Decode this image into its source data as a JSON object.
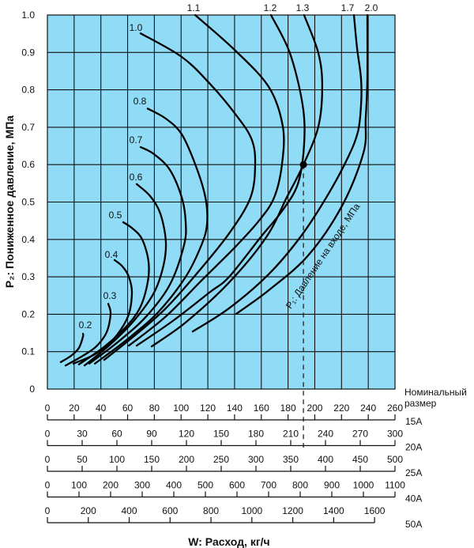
{
  "chart_data": {
    "type": "line",
    "xlabel": "W: Расход, кг/ч",
    "ylabel": "P₂: Пониженное давление, МПа",
    "series_title": "P₁: Давление на входе, МПа",
    "nominal_size_title": [
      "Номинальный",
      "размер"
    ],
    "grid": true,
    "colors": {
      "plot_background": "#90dcf6",
      "grid": "#111111",
      "curve": "#000000"
    },
    "y_axis": {
      "min": 0,
      "max": 1.0,
      "step": 0.1,
      "tick_labels": [
        "0",
        "0.1",
        "0.2",
        "0.3",
        "0.4",
        "0.5",
        "0.6",
        "0.7",
        "0.8",
        "0.9",
        "1.0"
      ]
    },
    "x_axes": [
      {
        "size": "15A",
        "full_scale": 260,
        "ticks": [
          0,
          20,
          40,
          60,
          80,
          100,
          120,
          140,
          160,
          180,
          200,
          220,
          240,
          260
        ],
        "tick_labels": [
          "0",
          "20",
          "40",
          "60",
          "80",
          "100",
          "120",
          "140",
          "160",
          "180",
          "200",
          "220",
          "240",
          "260"
        ]
      },
      {
        "size": "20A",
        "full_scale": 300,
        "ticks": [
          0,
          30,
          60,
          90,
          120,
          150,
          180,
          210,
          240,
          270,
          300
        ],
        "tick_labels": [
          "0",
          "30",
          "60",
          "90",
          "120",
          "150",
          "180",
          "210",
          "240",
          "270",
          "300"
        ]
      },
      {
        "size": "25A",
        "full_scale": 500,
        "ticks": [
          0,
          50,
          100,
          150,
          200,
          250,
          300,
          350,
          400,
          450,
          500
        ],
        "tick_labels": [
          "0",
          "50",
          "100",
          "150",
          "200",
          "250",
          "300",
          "350",
          "400",
          "450",
          "500"
        ]
      },
      {
        "size": "40A",
        "full_scale": 1100,
        "ticks": [
          0,
          100,
          200,
          300,
          400,
          500,
          600,
          700,
          800,
          900,
          1000,
          1100
        ],
        "tick_labels": [
          "0",
          "100",
          "200",
          "300",
          "400",
          "500",
          "600",
          "700",
          "800",
          "900",
          "1000",
          "1100"
        ]
      },
      {
        "size": "50A",
        "full_scale": 1700,
        "ticks": [
          0,
          200,
          400,
          600,
          800,
          1000,
          1200,
          1400,
          1600
        ],
        "tick_labels": [
          "0",
          "200",
          "400",
          "600",
          "800",
          "1000",
          "1200",
          "1400",
          "1600"
        ]
      }
    ],
    "series_x_axis": "15A",
    "series": [
      {
        "name": "0.2",
        "points": [
          [
            10,
            0.072
          ],
          [
            17.7,
            0.089
          ],
          [
            23.6,
            0.11
          ],
          [
            26.6,
            0.14
          ],
          [
            26.6,
            0.148
          ]
        ]
      },
      {
        "name": "0.3",
        "points": [
          [
            13.6,
            0.063
          ],
          [
            26.6,
            0.089
          ],
          [
            36.6,
            0.114
          ],
          [
            44.3,
            0.152
          ],
          [
            47.3,
            0.201
          ],
          [
            45.5,
            0.228
          ]
        ]
      },
      {
        "name": "0.4",
        "points": [
          [
            19.5,
            0.068
          ],
          [
            35.5,
            0.093
          ],
          [
            49.0,
            0.131
          ],
          [
            60.3,
            0.194
          ],
          [
            63.2,
            0.258
          ],
          [
            60.9,
            0.3
          ],
          [
            56.1,
            0.328
          ],
          [
            50.2,
            0.345
          ]
        ]
      },
      {
        "name": "0.5",
        "points": [
          [
            23.6,
            0.066
          ],
          [
            41.4,
            0.11
          ],
          [
            57.9,
            0.163
          ],
          [
            69.1,
            0.216
          ],
          [
            75.0,
            0.285
          ],
          [
            75.6,
            0.342
          ],
          [
            70.9,
            0.4
          ],
          [
            63.8,
            0.429
          ],
          [
            56.7,
            0.446
          ]
        ]
      },
      {
        "name": "0.6",
        "points": [
          [
            27.8,
            0.063
          ],
          [
            47.3,
            0.12
          ],
          [
            65.0,
            0.184
          ],
          [
            79.8,
            0.258
          ],
          [
            86.9,
            0.332
          ],
          [
            88.6,
            0.395
          ],
          [
            84.5,
            0.469
          ],
          [
            76.8,
            0.516
          ],
          [
            66.8,
            0.548
          ]
        ]
      },
      {
        "name": "0.7",
        "points": [
          [
            31.3,
            0.068
          ],
          [
            53.2,
            0.127
          ],
          [
            73.9,
            0.194
          ],
          [
            91.6,
            0.279
          ],
          [
            102.2,
            0.385
          ],
          [
            103.4,
            0.448
          ],
          [
            100.5,
            0.512
          ],
          [
            91.6,
            0.586
          ],
          [
            79.8,
            0.628
          ],
          [
            69.7,
            0.647
          ]
        ]
      },
      {
        "name": "0.8",
        "points": [
          [
            35.5,
            0.068
          ],
          [
            59.1,
            0.131
          ],
          [
            82.7,
            0.205
          ],
          [
            103.4,
            0.3
          ],
          [
            115.2,
            0.385
          ],
          [
            119.4,
            0.442
          ],
          [
            118.2,
            0.512
          ],
          [
            111.1,
            0.596
          ],
          [
            100.5,
            0.681
          ],
          [
            88.6,
            0.723
          ],
          [
            75.0,
            0.75
          ]
        ]
      },
      {
        "name": "1.0",
        "points": [
          [
            42.5,
            0.078
          ],
          [
            65.0,
            0.142
          ],
          [
            88.6,
            0.216
          ],
          [
            112.3,
            0.311
          ],
          [
            135.9,
            0.416
          ],
          [
            151.9,
            0.512
          ],
          [
            155.4,
            0.602
          ],
          [
            152.5,
            0.67
          ],
          [
            140.0,
            0.738
          ],
          [
            121.1,
            0.818
          ],
          [
            100.5,
            0.888
          ],
          [
            69.7,
            0.951
          ]
        ]
      },
      {
        "name": "1.1",
        "points": [
          [
            60.9,
            0.116
          ],
          [
            88.6,
            0.194
          ],
          [
            115.2,
            0.29
          ],
          [
            138.9,
            0.374
          ],
          [
            157.8,
            0.448
          ],
          [
            169.6,
            0.512
          ],
          [
            175.5,
            0.602
          ],
          [
            176.1,
            0.702
          ],
          [
            165.5,
            0.808
          ],
          [
            140.0,
            0.907
          ],
          [
            110.5,
            1.0
          ]
        ]
      },
      {
        "name": "1.2",
        "points": [
          [
            66.8,
            0.116
          ],
          [
            94.5,
            0.184
          ],
          [
            121.1,
            0.258
          ],
          [
            135.9,
            0.3
          ],
          [
            159.5,
            0.406
          ],
          [
            175.5,
            0.476
          ],
          [
            187.3,
            0.548
          ],
          [
            192.0,
            0.653
          ],
          [
            190.9,
            0.759
          ],
          [
            181.4,
            0.898
          ],
          [
            167.2,
            1.0
          ]
        ]
      },
      {
        "name": "1.3",
        "points": [
          [
            78.0,
            0.114
          ],
          [
            103.4,
            0.178
          ],
          [
            135.9,
            0.285
          ],
          [
            163.7,
            0.406
          ],
          [
            179.0,
            0.512
          ],
          [
            191.5,
            0.6
          ],
          [
            202.7,
            0.702
          ],
          [
            205.6,
            0.808
          ],
          [
            202.7,
            0.898
          ],
          [
            192.0,
            1.0
          ]
        ]
      },
      {
        "name": "1.7",
        "points": [
          [
            108.7,
            0.154
          ],
          [
            135.9,
            0.216
          ],
          [
            165.5,
            0.307
          ],
          [
            189.1,
            0.406
          ],
          [
            208.6,
            0.512
          ],
          [
            224.5,
            0.617
          ],
          [
            232.2,
            0.687
          ],
          [
            234.6,
            0.759
          ],
          [
            234.6,
            0.829
          ],
          [
            231.6,
            0.913
          ],
          [
            229.3,
            1.0
          ]
        ]
      },
      {
        "name": "2.0",
        "points": [
          [
            141.2,
            0.201
          ],
          [
            165.5,
            0.264
          ],
          [
            195.0,
            0.357
          ],
          [
            220.4,
            0.49
          ],
          [
            236.4,
            0.632
          ],
          [
            238.1,
            0.723
          ],
          [
            239.3,
            0.829
          ],
          [
            239.3,
            1.0
          ]
        ]
      }
    ],
    "marked_point": {
      "series": "1.3",
      "w": 191.5,
      "p2": 0.6
    }
  }
}
